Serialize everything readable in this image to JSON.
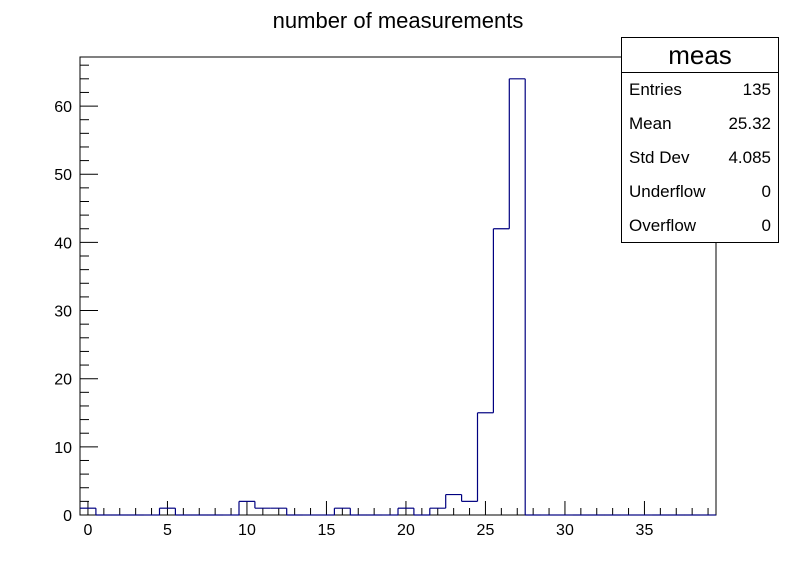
{
  "chart_data": {
    "type": "bar",
    "title": "number of measurements",
    "xlabel": "",
    "ylabel": "",
    "bin_width": 1,
    "xlim": [
      -0.5,
      39.5
    ],
    "ylim": [
      0,
      67.2
    ],
    "x_ticks": [
      0,
      5,
      10,
      15,
      20,
      25,
      30,
      35
    ],
    "y_ticks": [
      0,
      10,
      20,
      30,
      40,
      50,
      60
    ],
    "x_tick_labels": [
      "0",
      "5",
      "10",
      "15",
      "20",
      "25",
      "30",
      "35"
    ],
    "y_tick_labels": [
      "0",
      "10",
      "20",
      "30",
      "40",
      "50",
      "60"
    ],
    "line_color": "#000080",
    "bins": [
      {
        "x": 0,
        "value": 1
      },
      {
        "x": 1,
        "value": 0
      },
      {
        "x": 2,
        "value": 0
      },
      {
        "x": 3,
        "value": 0
      },
      {
        "x": 4,
        "value": 0
      },
      {
        "x": 5,
        "value": 1
      },
      {
        "x": 6,
        "value": 0
      },
      {
        "x": 7,
        "value": 0
      },
      {
        "x": 8,
        "value": 0
      },
      {
        "x": 9,
        "value": 0
      },
      {
        "x": 10,
        "value": 2
      },
      {
        "x": 11,
        "value": 1
      },
      {
        "x": 12,
        "value": 1
      },
      {
        "x": 13,
        "value": 0
      },
      {
        "x": 14,
        "value": 0
      },
      {
        "x": 15,
        "value": 0
      },
      {
        "x": 16,
        "value": 1
      },
      {
        "x": 17,
        "value": 0
      },
      {
        "x": 18,
        "value": 0
      },
      {
        "x": 19,
        "value": 0
      },
      {
        "x": 20,
        "value": 1
      },
      {
        "x": 21,
        "value": 0
      },
      {
        "x": 22,
        "value": 1
      },
      {
        "x": 23,
        "value": 3
      },
      {
        "x": 24,
        "value": 2
      },
      {
        "x": 25,
        "value": 15
      },
      {
        "x": 26,
        "value": 42
      },
      {
        "x": 27,
        "value": 64
      },
      {
        "x": 28,
        "value": 0
      },
      {
        "x": 29,
        "value": 0
      },
      {
        "x": 30,
        "value": 0
      },
      {
        "x": 31,
        "value": 0
      },
      {
        "x": 32,
        "value": 0
      },
      {
        "x": 33,
        "value": 0
      },
      {
        "x": 34,
        "value": 0
      },
      {
        "x": 35,
        "value": 0
      },
      {
        "x": 36,
        "value": 0
      },
      {
        "x": 37,
        "value": 0
      },
      {
        "x": 38,
        "value": 0
      },
      {
        "x": 39,
        "value": 0
      }
    ],
    "legend": "top-right"
  },
  "stats": {
    "name": "meas",
    "rows": [
      {
        "label": "Entries",
        "value": "135"
      },
      {
        "label": "Mean",
        "value": "25.32"
      },
      {
        "label": "Std Dev",
        "value": "4.085"
      },
      {
        "label": "Underflow",
        "value": "0"
      },
      {
        "label": "Overflow",
        "value": "0"
      }
    ]
  }
}
